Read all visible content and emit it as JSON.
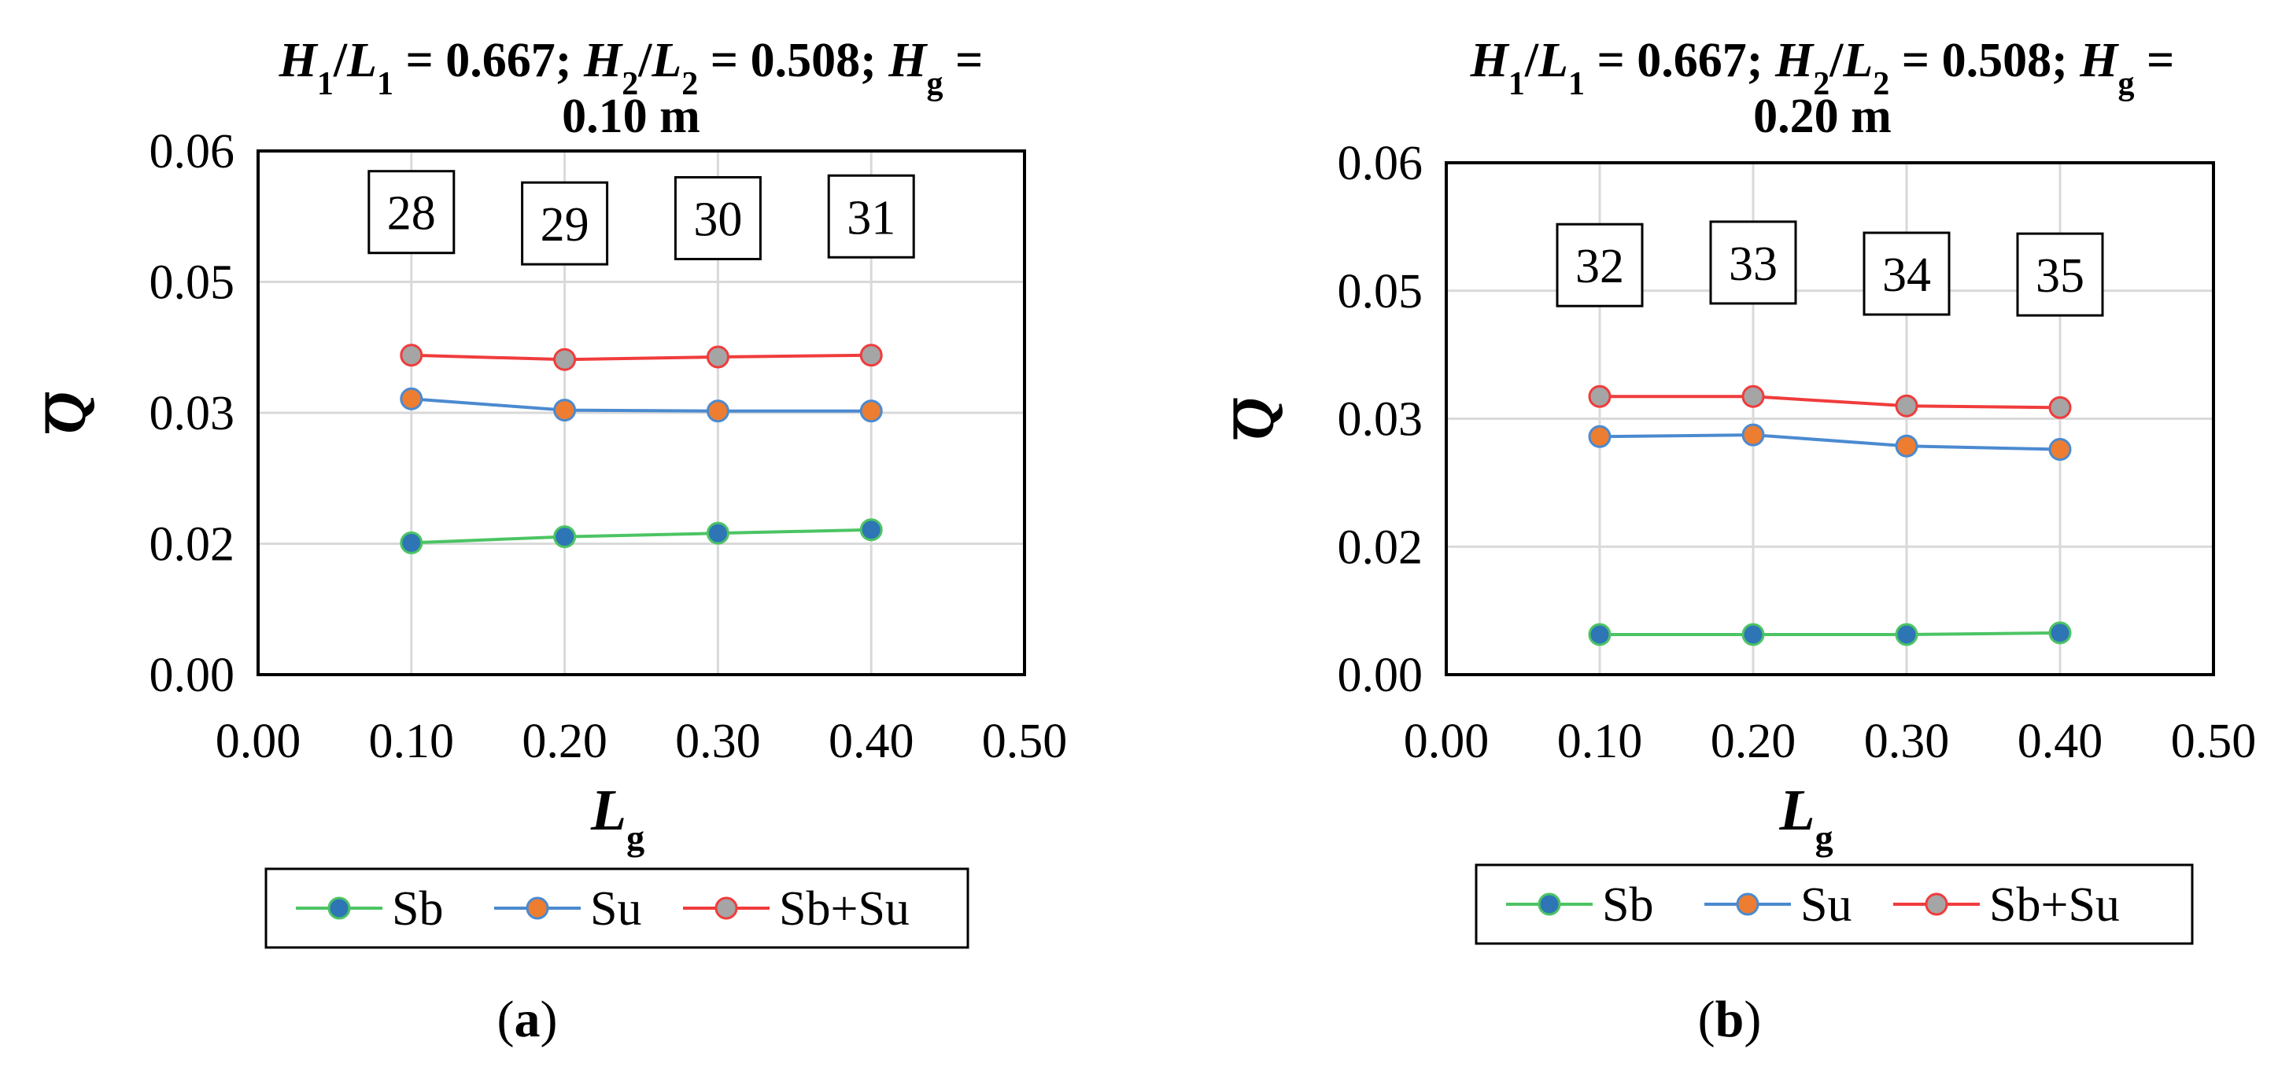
{
  "chart_data": [
    {
      "type": "line",
      "panel_label_parts": [
        "(",
        "a",
        ")"
      ],
      "title_line1": "H1/L1 = 0.667; H2/L2 = 0.508; Hg =",
      "title_line2": "0.10 m",
      "xlabel": "Lg",
      "ylabel": "Q",
      "xlim": [
        0.0,
        0.5
      ],
      "ylim": [
        0.0,
        0.06
      ],
      "x_ticks": [
        "0.00",
        "0.10",
        "0.20",
        "0.30",
        "0.40",
        "0.50"
      ],
      "y_ticks": [
        "0.00",
        "0.02",
        "0.03",
        "0.05",
        "0.06"
      ],
      "grid": true,
      "legend_position": "bottom",
      "x": [
        0.1,
        0.2,
        0.3,
        0.4
      ],
      "series": [
        {
          "name": "Sb",
          "values": [
            0.0151,
            0.0158,
            0.0162,
            0.0166
          ],
          "line_color": "#4cc464",
          "marker_fill": "#2e75b6",
          "marker_stroke": "#4cc464"
        },
        {
          "name": "Su",
          "values": [
            0.0316,
            0.0303,
            0.0302,
            0.0302
          ],
          "line_color": "#4b8ad0",
          "marker_fill": "#ed7d31",
          "marker_stroke": "#4b8ad0"
        },
        {
          "name": "Sb+Su",
          "values": [
            0.0366,
            0.0361,
            0.0364,
            0.0366
          ],
          "line_color": "#f03c3c",
          "marker_fill": "#a5a5a5",
          "marker_stroke": "#f03c3c"
        }
      ],
      "annotations": [
        {
          "text": "28",
          "x": 0.1,
          "y": 0.053
        },
        {
          "text": "29",
          "x": 0.2,
          "y": 0.0517
        },
        {
          "text": "30",
          "x": 0.3,
          "y": 0.0523
        },
        {
          "text": "31",
          "x": 0.4,
          "y": 0.0525
        }
      ]
    },
    {
      "type": "line",
      "panel_label_parts": [
        "(",
        "b",
        ")"
      ],
      "title_line1": "H1/L1 = 0.667; H2/L2 = 0.508; Hg =",
      "title_line2": "0.20 m",
      "xlabel": "Lg",
      "ylabel": "Q",
      "xlim": [
        0.0,
        0.5
      ],
      "ylim": [
        0.0,
        0.06
      ],
      "x_ticks": [
        "0.00",
        "0.10",
        "0.20",
        "0.30",
        "0.40",
        "0.50"
      ],
      "y_ticks": [
        "0.00",
        "0.02",
        "0.03",
        "0.05",
        "0.06"
      ],
      "grid": true,
      "legend_position": "bottom",
      "x": [
        0.1,
        0.2,
        0.3,
        0.4
      ],
      "series": [
        {
          "name": "Sb",
          "values": [
            0.0047,
            0.0047,
            0.0047,
            0.0049
          ],
          "line_color": "#4cc464",
          "marker_fill": "#2e75b6",
          "marker_stroke": "#4cc464"
        },
        {
          "name": "Su",
          "values": [
            0.0279,
            0.0281,
            0.0268,
            0.0264
          ],
          "line_color": "#4b8ad0",
          "marker_fill": "#ed7d31",
          "marker_stroke": "#4b8ad0"
        },
        {
          "name": "Sb+Su",
          "values": [
            0.0326,
            0.0326,
            0.0315,
            0.0313
          ],
          "line_color": "#f03c3c",
          "marker_fill": "#a5a5a5",
          "marker_stroke": "#f03c3c"
        }
      ],
      "annotations": [
        {
          "text": "32",
          "x": 0.1,
          "y": 0.048
        },
        {
          "text": "33",
          "x": 0.2,
          "y": 0.0483
        },
        {
          "text": "34",
          "x": 0.3,
          "y": 0.047
        },
        {
          "text": "35",
          "x": 0.4,
          "y": 0.0469
        }
      ]
    }
  ]
}
